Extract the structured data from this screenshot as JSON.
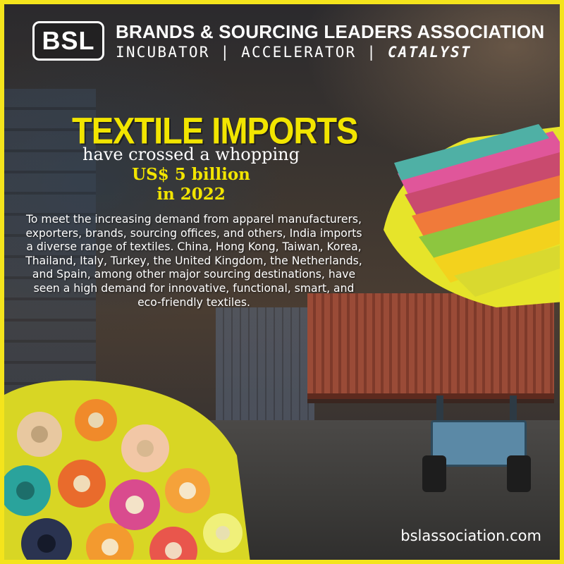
{
  "brand": {
    "logo_text": "BSL",
    "name": "BRANDS & SOURCING LEADERS ASSOCIATION",
    "tagline_part1": "INCUBATOR",
    "separator": "|",
    "tagline_part2": "ACCELERATOR",
    "tagline_part3": "CATALYST"
  },
  "headline": {
    "title": "TEXTILE IMPORTS",
    "line1": "have crossed a whopping",
    "line2": "US$ 5 billion",
    "line3": "in 2022"
  },
  "body": "To meet the increasing demand from apparel manufacturers, exporters, brands, sourcing offices, and others, India imports a diverse range of textiles. China, Hong Kong, Taiwan, Korea, Thailand, Italy, Turkey, the United Kingdom, the Netherlands, and Spain, among other major sourcing destinations, have seen a high demand for innovative, functional, smart, and eco-friendly textiles.",
  "footer": {
    "website": "bslassociation.com"
  },
  "colors": {
    "accent": "#f2e500",
    "frame": "#f4e41c",
    "text": "#ffffff"
  },
  "illustrations": [
    "shipping-container",
    "forklift",
    "fabric-swatches",
    "fabric-rolls"
  ]
}
